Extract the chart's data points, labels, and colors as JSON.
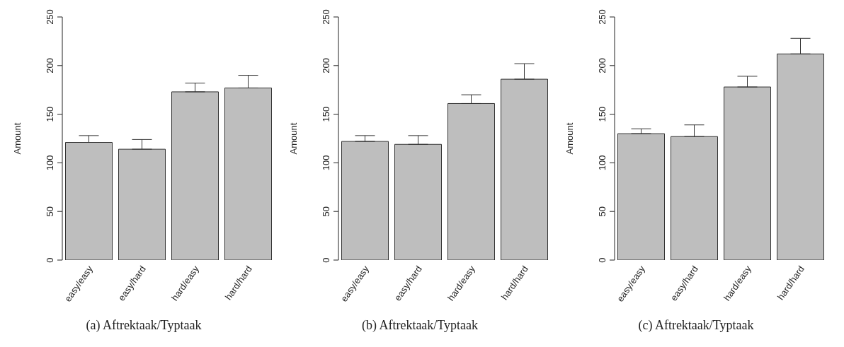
{
  "chart_data": [
    {
      "type": "bar",
      "title": "(a) Aftrektaak/Typtaak",
      "ylabel": "Amount",
      "categories": [
        "easy/easy",
        "easy/hard",
        "hard/easy",
        "hard/hard"
      ],
      "values": [
        121,
        114,
        173,
        177
      ],
      "errors": [
        [
          121,
          128
        ],
        [
          114,
          124
        ],
        [
          173,
          182
        ],
        [
          177,
          190
        ]
      ],
      "color": "#bebebe",
      "ylim": [
        0,
        250
      ],
      "yticks": [
        0,
        50,
        100,
        150,
        200,
        250
      ]
    },
    {
      "type": "bar",
      "title": "(b) Aftrektaak/Typtaak",
      "ylabel": "Amount",
      "categories": [
        "easy/easy",
        "easy/hard",
        "hard/easy",
        "hard/hard"
      ],
      "values": [
        122,
        119,
        161,
        186
      ],
      "errors": [
        [
          122,
          128
        ],
        [
          119,
          128
        ],
        [
          161,
          170
        ],
        [
          186,
          202
        ]
      ],
      "color": "#bebebe",
      "ylim": [
        0,
        250
      ],
      "yticks": [
        0,
        50,
        100,
        150,
        200,
        250
      ]
    },
    {
      "type": "bar",
      "title": "(c) Aftrektaak/Typtaak",
      "ylabel": "Amount",
      "categories": [
        "easy/easy",
        "easy/hard",
        "hard/easy",
        "hard/hard"
      ],
      "values": [
        130,
        127,
        178,
        212
      ],
      "errors": [
        [
          130,
          135
        ],
        [
          127,
          139
        ],
        [
          178,
          189
        ],
        [
          212,
          228
        ]
      ],
      "color": "#bebebe",
      "ylim": [
        0,
        250
      ],
      "yticks": [
        0,
        50,
        100,
        150,
        200,
        250
      ]
    }
  ]
}
